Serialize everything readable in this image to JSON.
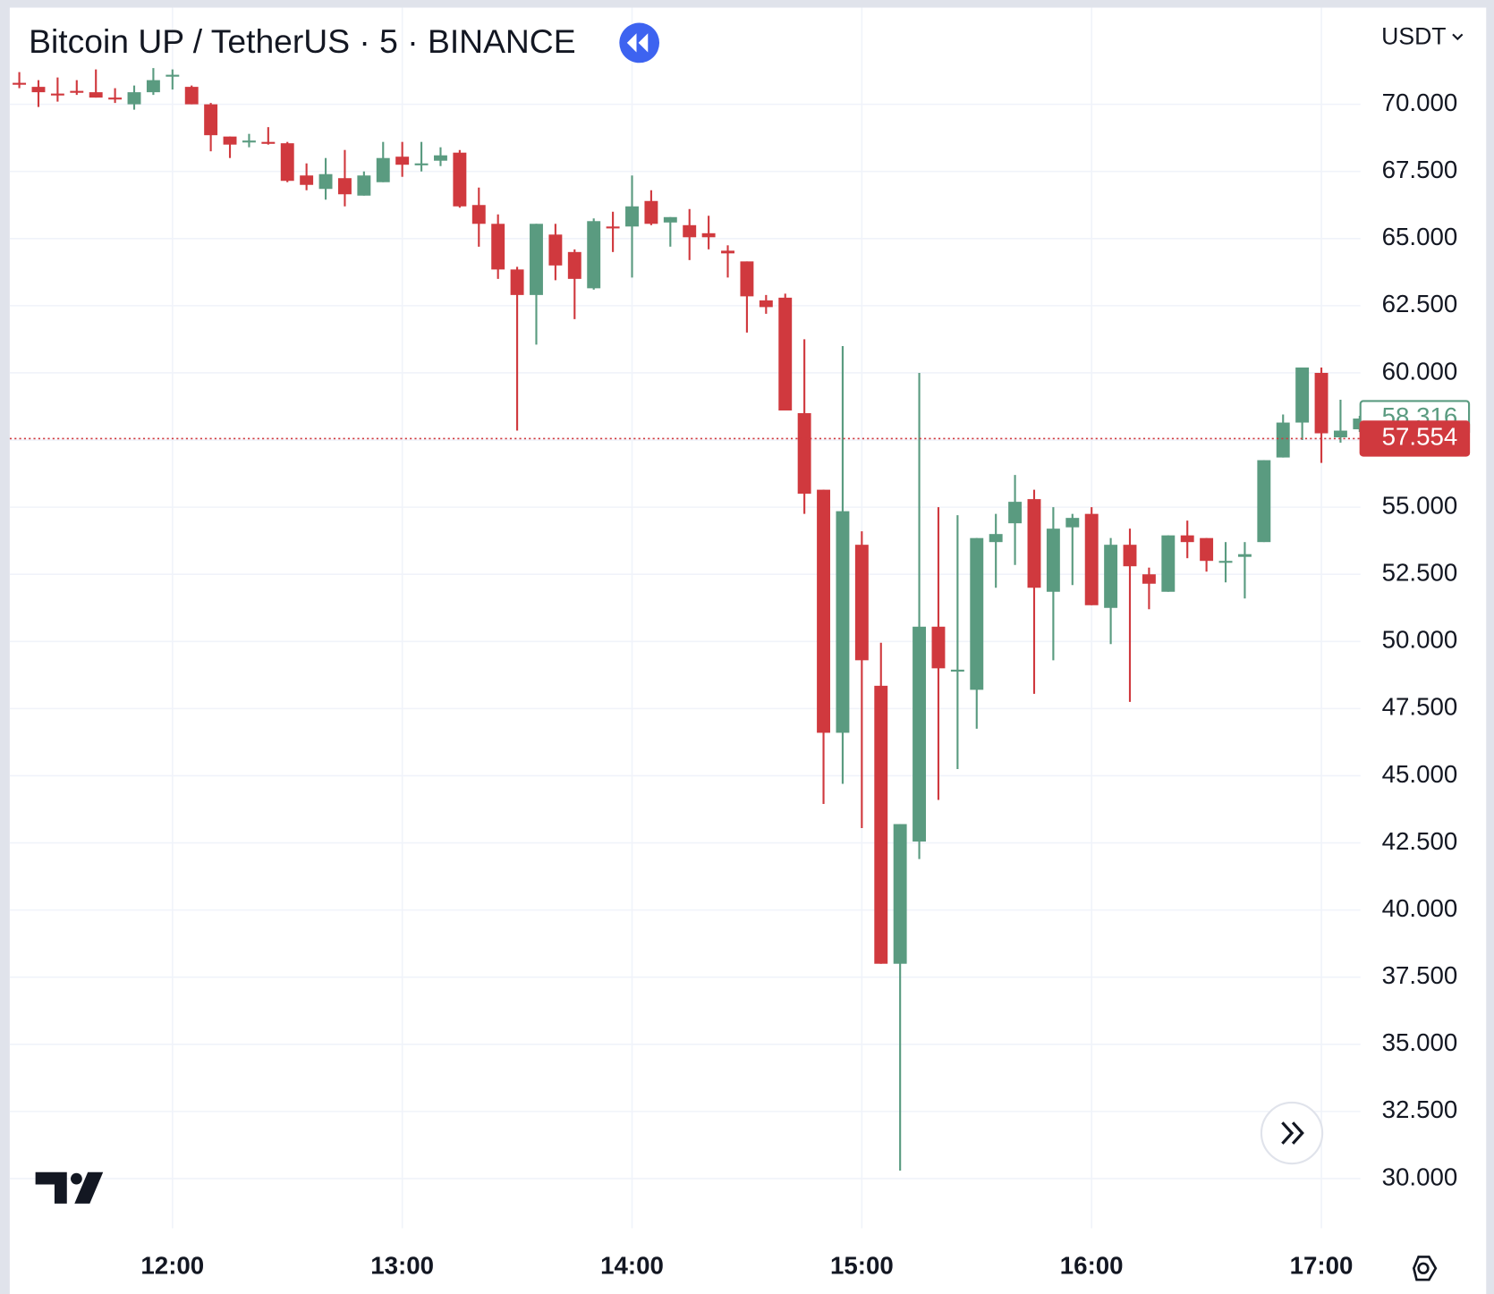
{
  "chart_data": {
    "type": "candlestick",
    "title": "Bitcoin UP / TetherUS · 5 · BINANCE",
    "currency": "USDT",
    "up_color": "#5a9b80",
    "down_color": "#d0393e",
    "grid": true,
    "x": [
      680,
      685,
      690,
      695,
      700,
      705,
      710,
      715,
      720,
      725,
      730,
      735,
      740,
      745,
      750,
      755,
      760,
      765,
      770,
      775,
      780,
      785,
      790,
      795,
      800,
      805,
      810,
      815,
      820,
      825,
      830,
      835,
      840,
      845,
      850,
      855,
      860,
      865,
      870,
      875,
      880,
      885,
      890,
      895,
      900,
      905,
      910,
      915,
      920,
      925,
      930,
      935,
      940,
      945,
      950,
      955,
      960,
      965,
      970,
      975,
      980,
      985,
      990,
      995,
      1000,
      1005,
      1010,
      1015,
      1020,
      1025,
      1030
    ],
    "open": [
      70.8,
      70.65,
      70.4,
      70.5,
      70.45,
      70.25,
      70.0,
      70.45,
      71.05,
      70.65,
      70.0,
      68.8,
      68.6,
      68.6,
      68.55,
      67.35,
      66.85,
      67.25,
      66.6,
      67.1,
      68.05,
      67.75,
      67.9,
      68.2,
      66.25,
      65.55,
      63.85,
      62.9,
      65.15,
      64.5,
      63.15,
      65.45,
      65.45,
      66.4,
      65.6,
      65.5,
      65.2,
      64.55,
      64.15,
      62.7,
      62.8,
      58.5,
      55.65,
      46.6,
      53.6,
      48.35,
      38.0,
      42.55,
      50.55,
      48.9,
      48.2,
      53.7,
      54.4,
      55.3,
      51.85,
      54.25,
      54.75,
      51.25,
      53.6,
      52.5,
      51.85,
      53.95,
      53.85,
      52.95,
      53.15,
      53.7,
      56.85,
      58.15,
      60.0,
      57.6,
      57.9
    ],
    "high": [
      71.2,
      70.9,
      71.0,
      70.9,
      71.3,
      70.6,
      70.7,
      71.35,
      71.3,
      70.7,
      70.05,
      68.8,
      68.9,
      69.15,
      68.6,
      67.8,
      68.0,
      68.3,
      67.5,
      68.6,
      68.6,
      68.6,
      68.4,
      68.3,
      66.9,
      65.9,
      63.95,
      65.55,
      65.55,
      64.6,
      65.75,
      66.0,
      67.35,
      66.8,
      65.8,
      66.1,
      65.85,
      64.75,
      64.15,
      62.9,
      62.95,
      61.25,
      55.65,
      61.0,
      54.1,
      49.95,
      43.2,
      60.0,
      55.0,
      54.7,
      53.85,
      54.75,
      56.2,
      55.65,
      55.0,
      54.75,
      55.0,
      53.85,
      54.2,
      52.75,
      53.95,
      54.5,
      53.85,
      53.7,
      53.7,
      56.75,
      58.45,
      60.2,
      60.2,
      59.0,
      58.4
    ],
    "low": [
      70.6,
      69.9,
      70.1,
      70.35,
      70.25,
      70.05,
      69.8,
      70.35,
      70.55,
      70.0,
      68.25,
      68.0,
      68.4,
      68.5,
      67.1,
      66.8,
      66.45,
      66.2,
      66.6,
      67.1,
      67.3,
      67.5,
      67.7,
      66.15,
      64.7,
      63.5,
      57.85,
      61.05,
      63.45,
      62.0,
      63.1,
      64.5,
      63.55,
      65.5,
      64.7,
      64.2,
      64.6,
      63.55,
      61.5,
      62.2,
      58.6,
      54.75,
      43.95,
      44.7,
      43.05,
      38.0,
      30.3,
      41.9,
      44.1,
      45.25,
      46.75,
      52.0,
      52.85,
      48.05,
      49.3,
      52.1,
      51.35,
      49.9,
      47.75,
      51.2,
      51.85,
      53.1,
      52.6,
      52.2,
      51.6,
      53.7,
      56.85,
      57.5,
      56.65,
      57.4,
      57.8
    ],
    "close": [
      70.75,
      70.45,
      70.35,
      70.45,
      70.25,
      70.2,
      70.45,
      70.9,
      71.1,
      70.0,
      68.85,
      68.5,
      68.65,
      68.55,
      67.15,
      67.0,
      67.4,
      66.65,
      67.35,
      68.0,
      67.75,
      67.8,
      68.1,
      66.2,
      65.55,
      63.85,
      62.9,
      65.55,
      64.0,
      63.5,
      65.65,
      65.4,
      66.2,
      65.55,
      65.8,
      65.05,
      65.05,
      64.45,
      62.85,
      62.45,
      58.6,
      55.5,
      46.6,
      54.85,
      49.3,
      38.0,
      43.2,
      50.55,
      49.0,
      48.95,
      53.85,
      54.0,
      55.2,
      52.0,
      54.2,
      54.6,
      51.35,
      53.6,
      52.8,
      52.15,
      53.95,
      53.7,
      53.0,
      53.0,
      53.25,
      56.75,
      58.15,
      60.2,
      57.75,
      57.85,
      58.3
    ],
    "xlim": [
      677.5,
      1030.2
    ],
    "xticks": [
      {
        "value": 720,
        "label": "12:00"
      },
      {
        "value": 780,
        "label": "13:00"
      },
      {
        "value": 840,
        "label": "14:00"
      },
      {
        "value": 900,
        "label": "15:00"
      },
      {
        "value": 960,
        "label": "16:00"
      },
      {
        "value": 1020,
        "label": "17:00"
      }
    ],
    "ylim": [
      28.15,
      73.6
    ],
    "yticks": [
      {
        "value": 30,
        "label": "30.000"
      },
      {
        "value": 32.5,
        "label": "32.500"
      },
      {
        "value": 35,
        "label": "35.000"
      },
      {
        "value": 37.5,
        "label": "37.500"
      },
      {
        "value": 40,
        "label": "40.000"
      },
      {
        "value": 42.5,
        "label": "42.500"
      },
      {
        "value": 45,
        "label": "45.000"
      },
      {
        "value": 47.5,
        "label": "47.500"
      },
      {
        "value": 50,
        "label": "50.000"
      },
      {
        "value": 52.5,
        "label": "52.500"
      },
      {
        "value": 55,
        "label": "55.000"
      },
      {
        "value": 57.5,
        "label": "57.500"
      },
      {
        "value": 60,
        "label": "60.000"
      },
      {
        "value": 62.5,
        "label": "62.500"
      },
      {
        "value": 65,
        "label": "65.000"
      },
      {
        "value": 67.5,
        "label": "67.500"
      },
      {
        "value": 70,
        "label": "70.000"
      }
    ],
    "price_labels": [
      {
        "value": 58.316,
        "color": "#5a9b80",
        "filled": false,
        "line": false
      },
      {
        "value": 57.554,
        "color": "#d0393e",
        "filled": true,
        "line": true
      }
    ]
  }
}
